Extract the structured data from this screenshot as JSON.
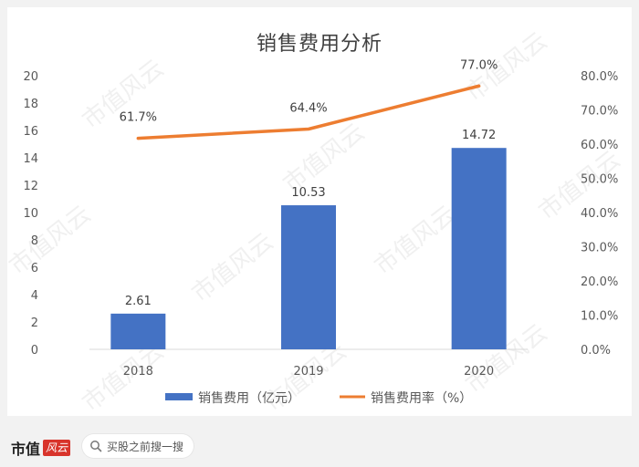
{
  "chart_data": {
    "type": "bar",
    "title": "销售费用分析",
    "categories": [
      "2018",
      "2019",
      "2020"
    ],
    "series": [
      {
        "name": "销售费用（亿元）",
        "type": "bar",
        "axis": "left",
        "values": [
          2.61,
          10.53,
          14.72
        ],
        "labels": [
          "2.61",
          "10.53",
          "14.72"
        ],
        "color": "#4472c4"
      },
      {
        "name": "销售费用率（%）",
        "type": "line",
        "axis": "right",
        "values": [
          61.7,
          64.4,
          77.0
        ],
        "labels": [
          "61.7%",
          "64.4%",
          "77.0%"
        ],
        "color": "#ed7d31"
      }
    ],
    "y_left": {
      "range": [
        0,
        20
      ],
      "ticks": [
        "0",
        "2",
        "4",
        "6",
        "8",
        "10",
        "12",
        "14",
        "16",
        "18",
        "20"
      ]
    },
    "y_right": {
      "range": [
        0,
        80
      ],
      "ticks": [
        "0.0%",
        "10.0%",
        "20.0%",
        "30.0%",
        "40.0%",
        "50.0%",
        "60.0%",
        "70.0%",
        "80.0%"
      ]
    },
    "grid": false,
    "legend_position": "bottom"
  },
  "footer": {
    "brand_name": "市值",
    "brand_seal": "风云",
    "search_label": "买股之前搜一搜"
  },
  "watermark_text": "市值风云"
}
